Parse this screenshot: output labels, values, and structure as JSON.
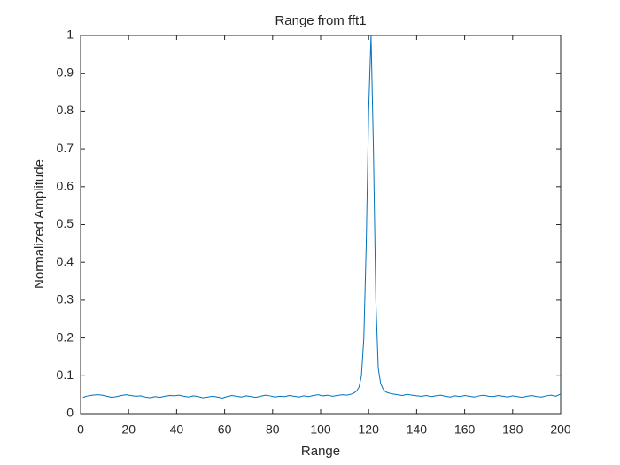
{
  "chart_data": {
    "type": "line",
    "title": "Range from fft1",
    "xlabel": "Range",
    "ylabel": "Normalized Amplitude",
    "x": [
      1,
      3,
      5,
      7,
      9,
      11,
      13,
      15,
      17,
      19,
      21,
      23,
      25,
      27,
      29,
      31,
      33,
      35,
      37,
      39,
      41,
      43,
      45,
      47,
      49,
      51,
      53,
      55,
      57,
      59,
      61,
      63,
      65,
      67,
      69,
      71,
      73,
      75,
      77,
      79,
      81,
      83,
      85,
      87,
      89,
      91,
      93,
      95,
      97,
      99,
      101,
      103,
      105,
      107,
      109,
      111,
      113,
      114,
      115,
      116,
      117,
      118,
      119,
      120,
      121,
      122,
      123,
      124,
      125,
      126,
      127,
      128,
      130,
      132,
      134,
      136,
      138,
      140,
      142,
      144,
      146,
      148,
      150,
      152,
      154,
      156,
      158,
      160,
      162,
      164,
      166,
      168,
      170,
      172,
      174,
      176,
      178,
      180,
      182,
      184,
      186,
      188,
      190,
      192,
      194,
      196,
      198,
      200
    ],
    "values": [
      0.043,
      0.047,
      0.049,
      0.05,
      0.049,
      0.046,
      0.043,
      0.045,
      0.048,
      0.05,
      0.048,
      0.046,
      0.047,
      0.044,
      0.042,
      0.045,
      0.043,
      0.046,
      0.048,
      0.047,
      0.049,
      0.046,
      0.044,
      0.047,
      0.045,
      0.042,
      0.044,
      0.046,
      0.044,
      0.041,
      0.045,
      0.048,
      0.046,
      0.044,
      0.047,
      0.045,
      0.043,
      0.046,
      0.049,
      0.047,
      0.044,
      0.046,
      0.045,
      0.048,
      0.046,
      0.044,
      0.047,
      0.045,
      0.048,
      0.05,
      0.047,
      0.049,
      0.046,
      0.048,
      0.05,
      0.049,
      0.052,
      0.055,
      0.06,
      0.07,
      0.1,
      0.2,
      0.45,
      0.8,
      1.0,
      0.7,
      0.3,
      0.12,
      0.08,
      0.065,
      0.058,
      0.055,
      0.052,
      0.05,
      0.048,
      0.051,
      0.049,
      0.047,
      0.046,
      0.048,
      0.045,
      0.047,
      0.049,
      0.046,
      0.044,
      0.047,
      0.045,
      0.048,
      0.046,
      0.044,
      0.047,
      0.049,
      0.046,
      0.045,
      0.048,
      0.046,
      0.044,
      0.047,
      0.045,
      0.043,
      0.046,
      0.048,
      0.045,
      0.044,
      0.047,
      0.049,
      0.046,
      0.052
    ],
    "color": "#0072bd",
    "xlim": [
      0,
      200
    ],
    "xticks": [
      0,
      20,
      40,
      60,
      80,
      100,
      120,
      140,
      160,
      180,
      200
    ],
    "ylim": [
      0,
      1
    ],
    "yticks": [
      0,
      0.1,
      0.2,
      0.3,
      0.4,
      0.5,
      0.6,
      0.7,
      0.8,
      0.9,
      1
    ],
    "grid": false
  }
}
